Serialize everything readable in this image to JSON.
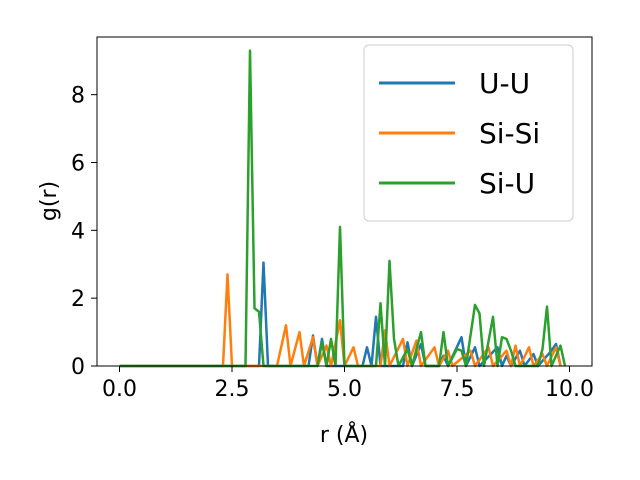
{
  "chart_data": {
    "type": "line",
    "title": "",
    "xlabel": "r (Å)",
    "ylabel": "g(r)",
    "xlim": [
      -0.5,
      10.5
    ],
    "ylim": [
      0,
      9.7
    ],
    "x_ticks": [
      "0.0",
      "2.5",
      "5.0",
      "7.5",
      "10.0"
    ],
    "x_tick_values": [
      0,
      2.5,
      5,
      7.5,
      10
    ],
    "y_ticks": [
      "0",
      "2",
      "4",
      "6",
      "8"
    ],
    "y_tick_values": [
      0,
      2,
      4,
      6,
      8
    ],
    "grid": false,
    "legend_position": "top-right",
    "series": [
      {
        "name": "U-U",
        "color": "#1f77b4",
        "points": [
          [
            0,
            0
          ],
          [
            3.1,
            0
          ],
          [
            3.2,
            3.05
          ],
          [
            3.3,
            0
          ],
          [
            4.2,
            0
          ],
          [
            4.3,
            0.9
          ],
          [
            4.4,
            0
          ],
          [
            4.5,
            0.8
          ],
          [
            4.6,
            0
          ],
          [
            5.4,
            0
          ],
          [
            5.5,
            0.55
          ],
          [
            5.6,
            0
          ],
          [
            5.7,
            1.45
          ],
          [
            5.8,
            0
          ],
          [
            6.3,
            0
          ],
          [
            6.4,
            0.7
          ],
          [
            6.5,
            0
          ],
          [
            6.7,
            0.65
          ],
          [
            6.8,
            0
          ],
          [
            7.1,
            0
          ],
          [
            7.2,
            0.3
          ],
          [
            7.3,
            0
          ],
          [
            7.6,
            0.85
          ],
          [
            7.7,
            0
          ],
          [
            7.9,
            0.55
          ],
          [
            8.0,
            0
          ],
          [
            8.4,
            0.55
          ],
          [
            8.5,
            0
          ],
          [
            8.6,
            0.3
          ],
          [
            8.7,
            0
          ],
          [
            8.9,
            0.45
          ],
          [
            9.0,
            0
          ],
          [
            9.2,
            0.35
          ],
          [
            9.3,
            0
          ],
          [
            9.6,
            0.45
          ],
          [
            9.7,
            0.65
          ],
          [
            9.8,
            0
          ]
        ]
      },
      {
        "name": "Si-Si",
        "color": "#ff7f0e",
        "points": [
          [
            0,
            0
          ],
          [
            2.3,
            0
          ],
          [
            2.4,
            2.7
          ],
          [
            2.5,
            0
          ],
          [
            3.5,
            0
          ],
          [
            3.7,
            1.2
          ],
          [
            3.8,
            0
          ],
          [
            4.0,
            1.0
          ],
          [
            4.1,
            0
          ],
          [
            4.3,
            0.85
          ],
          [
            4.4,
            0
          ],
          [
            4.6,
            0.6
          ],
          [
            4.7,
            0
          ],
          [
            4.9,
            1.35
          ],
          [
            5.0,
            0
          ],
          [
            5.2,
            0.55
          ],
          [
            5.3,
            0
          ],
          [
            5.8,
            0
          ],
          [
            5.9,
            1.05
          ],
          [
            6.0,
            0
          ],
          [
            6.3,
            0.8
          ],
          [
            6.4,
            0
          ],
          [
            6.6,
            0.75
          ],
          [
            6.7,
            0
          ],
          [
            7.0,
            0.55
          ],
          [
            7.1,
            0
          ],
          [
            7.3,
            0.45
          ],
          [
            7.4,
            0
          ],
          [
            7.8,
            0.45
          ],
          [
            7.9,
            0
          ],
          [
            8.2,
            0.55
          ],
          [
            8.3,
            0
          ],
          [
            8.6,
            0.45
          ],
          [
            8.7,
            0
          ],
          [
            8.8,
            0.6
          ],
          [
            8.9,
            0
          ],
          [
            9.1,
            0.55
          ],
          [
            9.2,
            0
          ],
          [
            9.4,
            0.35
          ],
          [
            9.5,
            0
          ],
          [
            9.7,
            0.55
          ],
          [
            9.8,
            0
          ]
        ]
      },
      {
        "name": "Si-U",
        "color": "#2ca02c",
        "points": [
          [
            0,
            0
          ],
          [
            2.8,
            0
          ],
          [
            2.9,
            9.3
          ],
          [
            3.0,
            1.7
          ],
          [
            3.1,
            1.6
          ],
          [
            3.2,
            0
          ],
          [
            4.4,
            0
          ],
          [
            4.5,
            0.7
          ],
          [
            4.6,
            0
          ],
          [
            4.7,
            0.8
          ],
          [
            4.8,
            0
          ],
          [
            4.9,
            4.1
          ],
          [
            5.0,
            0
          ],
          [
            5.7,
            0
          ],
          [
            5.8,
            1.85
          ],
          [
            5.9,
            0
          ],
          [
            6.0,
            3.1
          ],
          [
            6.1,
            0.8
          ],
          [
            6.2,
            0
          ],
          [
            6.4,
            0.5
          ],
          [
            6.5,
            0
          ],
          [
            6.7,
            1.0
          ],
          [
            6.8,
            0
          ],
          [
            7.1,
            0
          ],
          [
            7.2,
            1.0
          ],
          [
            7.3,
            0
          ],
          [
            7.5,
            0.5
          ],
          [
            7.6,
            0.45
          ],
          [
            7.7,
            0
          ],
          [
            7.9,
            1.8
          ],
          [
            8.0,
            1.55
          ],
          [
            8.1,
            0
          ],
          [
            8.3,
            1.45
          ],
          [
            8.4,
            0
          ],
          [
            8.5,
            0.85
          ],
          [
            8.6,
            0.8
          ],
          [
            8.7,
            0.45
          ],
          [
            8.8,
            0
          ],
          [
            9.3,
            0
          ],
          [
            9.4,
            0.5
          ],
          [
            9.5,
            1.75
          ],
          [
            9.6,
            0
          ],
          [
            9.8,
            0.6
          ],
          [
            9.9,
            0
          ]
        ]
      }
    ]
  }
}
